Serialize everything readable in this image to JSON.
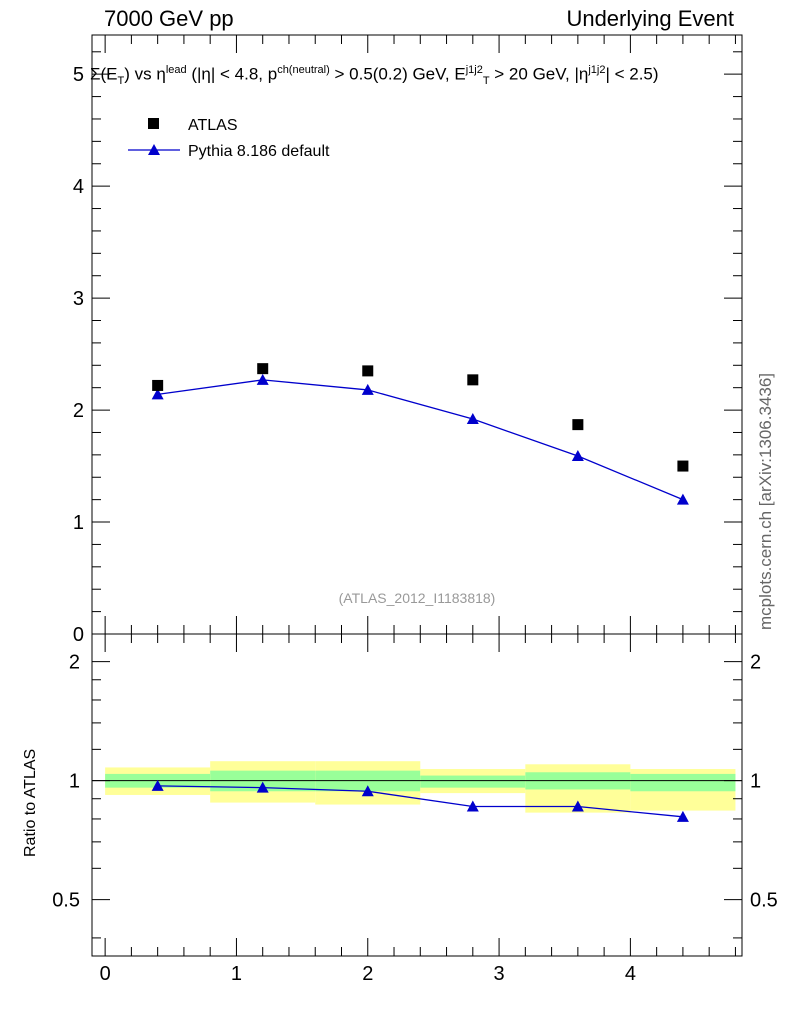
{
  "header": {
    "left": "7000 GeV pp",
    "right": "Underlying Event"
  },
  "side_label": "mcplots.cern.ch [arXiv:1306.3436]",
  "reference_label": "(ATLAS_2012_I1183818)",
  "title": {
    "sigma": "Σ(E",
    "t_sub": "T",
    "vs": ") vs η",
    "lead_sup": "lead",
    "cond1": " (|η| < 4.8, p",
    "ch_sup": "ch(neutral)",
    "cond2": " > 0.5(0.2) GeV, E",
    "j1j2_sup": "j1j2",
    "t_sub2": "T",
    "cond3": " > 20 GeV, |η",
    "j1j2_sup2": "j1j2",
    "cond4": "| < 2.5)"
  },
  "colors": {
    "data": "#000000",
    "mc": "#0000cc",
    "band_inner": "#99ff99",
    "band_outer": "#ffff99"
  },
  "chart_data": [
    {
      "type": "scatter",
      "x": [
        0.4,
        1.2,
        2.0,
        2.8,
        3.6,
        4.4
      ],
      "xlim": [
        -0.1,
        4.85
      ],
      "ylim": [
        0,
        5.35
      ],
      "yticks": [
        "0",
        "1",
        "2",
        "3",
        "4",
        "5"
      ],
      "series": [
        {
          "name": "ATLAS",
          "marker": "square",
          "values": [
            2.22,
            2.37,
            2.35,
            2.27,
            1.87,
            1.5
          ]
        },
        {
          "name": "Pythia 8.186 default",
          "marker": "triangle",
          "line": true,
          "values": [
            2.14,
            2.27,
            2.18,
            1.92,
            1.59,
            1.2
          ]
        }
      ]
    },
    {
      "type": "line",
      "ylabel": "Ratio to ATLAS",
      "x": [
        0.4,
        1.2,
        2.0,
        2.8,
        3.6,
        4.4
      ],
      "xlim": [
        -0.1,
        4.85
      ],
      "ylim": [
        0.36,
        2.35
      ],
      "yticks": [
        "0.5",
        "1",
        "2"
      ],
      "xticks": [
        "0",
        "1",
        "2",
        "3",
        "4"
      ],
      "ratio_values": [
        0.97,
        0.96,
        0.94,
        0.86,
        0.86,
        0.81
      ],
      "bins": [
        0.0,
        0.8,
        1.6,
        2.4,
        3.2,
        4.0,
        4.8
      ],
      "band_inner": [
        [
          0.96,
          1.04
        ],
        [
          0.94,
          1.06
        ],
        [
          0.94,
          1.06
        ],
        [
          0.96,
          1.03
        ],
        [
          0.95,
          1.05
        ],
        [
          0.94,
          1.04
        ]
      ],
      "band_outer": [
        [
          0.92,
          1.08
        ],
        [
          0.88,
          1.12
        ],
        [
          0.87,
          1.12
        ],
        [
          0.93,
          1.07
        ],
        [
          0.83,
          1.1
        ],
        [
          0.84,
          1.07
        ]
      ]
    }
  ]
}
